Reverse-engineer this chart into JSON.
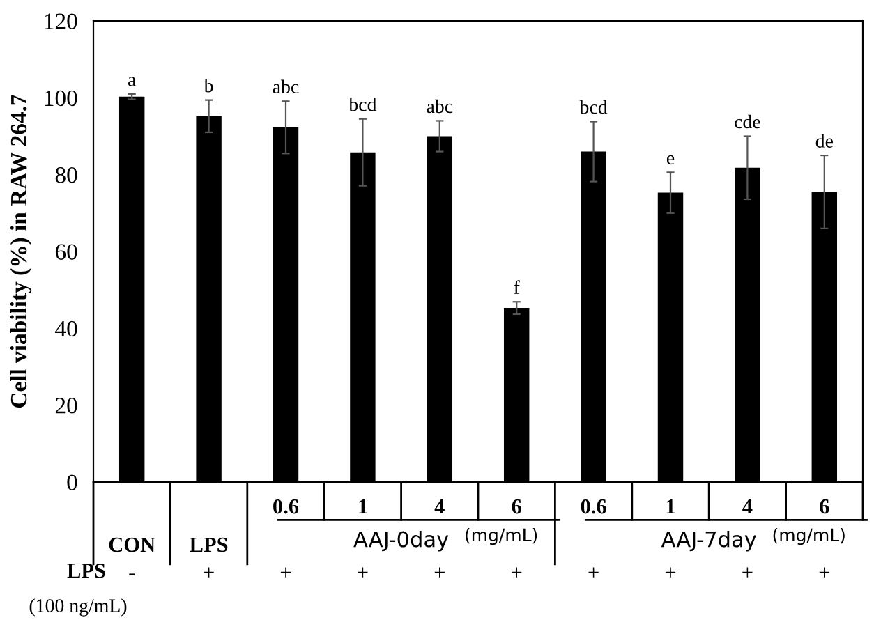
{
  "chart_data": {
    "type": "bar",
    "ylabel": "Cell viability (%) in RAW 264.7",
    "categories": [
      "CON",
      "LPS",
      "0.6",
      "1",
      "4",
      "6",
      "0.6",
      "1",
      "4",
      "6"
    ],
    "values": [
      100.3,
      95.2,
      92.3,
      85.8,
      90.0,
      45.3,
      86.0,
      75.3,
      81.8,
      75.5
    ],
    "errors": [
      0.7,
      4.2,
      6.8,
      8.7,
      4.0,
      1.6,
      7.8,
      5.3,
      8.2,
      9.5
    ],
    "value_labels": [
      "a",
      "b",
      "abc",
      "bcd",
      "abc",
      "f",
      "bcd",
      "e",
      "cde",
      "de"
    ],
    "color": "#000000",
    "ylim": [
      0,
      120
    ],
    "yticks": [
      0,
      20,
      40,
      60,
      80,
      100,
      120
    ],
    "grid": false,
    "annotations": [
      "AAJ-0day",
      "(mg/mL)",
      "AAJ-7day",
      "(mg/mL)",
      "LPS",
      "(100 ng/mL)",
      "-",
      "+",
      "+",
      "+",
      "+",
      "+",
      "+",
      "+",
      "+",
      "+"
    ]
  }
}
